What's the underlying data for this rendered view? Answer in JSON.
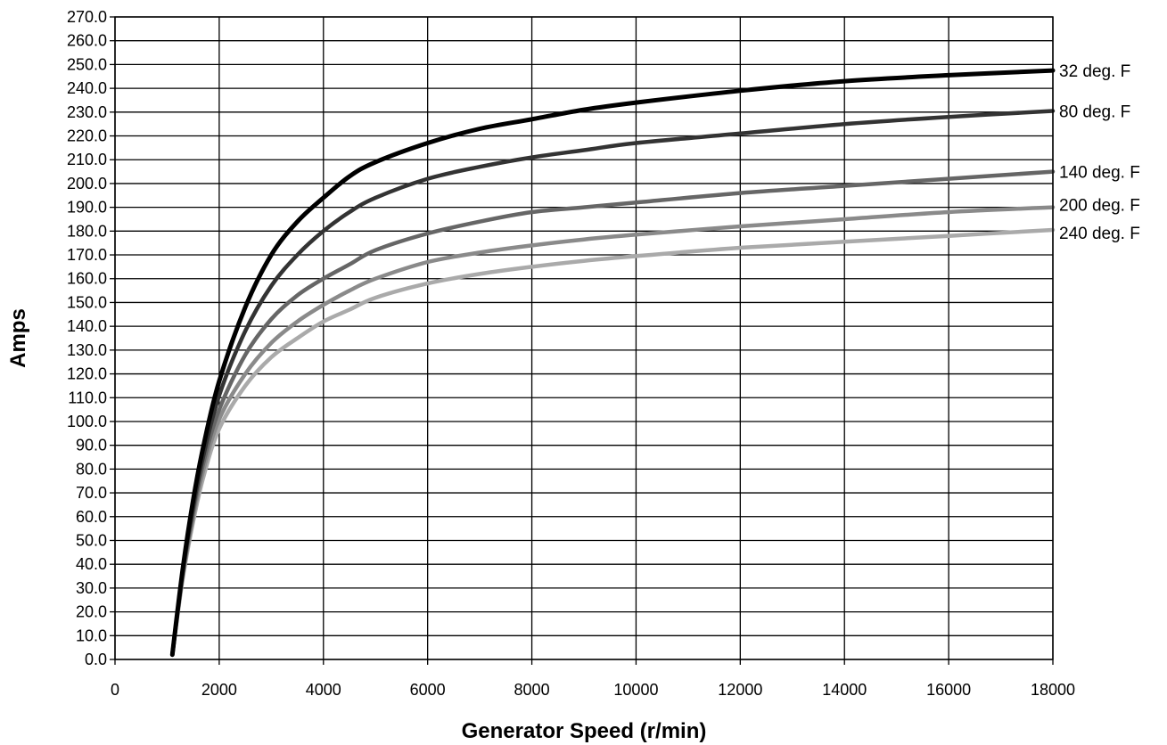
{
  "chart_data": {
    "type": "line",
    "title": "",
    "xlabel": "Generator Speed (r/min)",
    "ylabel": "Amps",
    "xlim": [
      0,
      18000
    ],
    "ylim": [
      0,
      270
    ],
    "grid": true,
    "x_ticks": [
      "0",
      "2000",
      "4000",
      "6000",
      "8000",
      "10000",
      "12000",
      "14000",
      "16000",
      "18000"
    ],
    "y_ticks": [
      "0.0",
      "10.0",
      "20.0",
      "30.0",
      "40.0",
      "50.0",
      "60.0",
      "70.0",
      "80.0",
      "90.0",
      "100.0",
      "110.0",
      "120.0",
      "130.0",
      "140.0",
      "150.0",
      "160.0",
      "170.0",
      "180.0",
      "190.0",
      "200.0",
      "210.0",
      "220.0",
      "230.0",
      "240.0",
      "250.0",
      "260.0",
      "270.0"
    ],
    "series": [
      {
        "name": "32 deg. F",
        "color": "#000000",
        "x": [
          1100,
          1300,
          1500,
          1700,
          2000,
          2500,
          3000,
          3500,
          4000,
          4500,
          5000,
          6000,
          7000,
          8000,
          9000,
          10000,
          12000,
          14000,
          16000,
          18000
        ],
        "y": [
          2,
          38,
          67,
          90,
          117,
          148,
          170,
          184,
          194,
          203,
          209,
          217,
          223,
          227,
          231,
          234,
          239,
          243,
          245.5,
          247.5
        ]
      },
      {
        "name": "80 deg. F",
        "color": "#333333",
        "x": [
          1100,
          1300,
          1500,
          1700,
          2000,
          2500,
          3000,
          3500,
          4000,
          4500,
          5000,
          6000,
          7000,
          8000,
          9000,
          10000,
          12000,
          14000,
          16000,
          18000
        ],
        "y": [
          2,
          37,
          64,
          86,
          111,
          138,
          157,
          170,
          180,
          188,
          194,
          202,
          207,
          211,
          214,
          217,
          221,
          225,
          228,
          230.5
        ]
      },
      {
        "name": "140 deg. F",
        "color": "#666666",
        "x": [
          1100,
          1300,
          1500,
          1700,
          2000,
          2500,
          3000,
          3500,
          4000,
          4500,
          5000,
          6000,
          7000,
          8000,
          9000,
          10000,
          12000,
          14000,
          16000,
          18000
        ],
        "y": [
          2,
          36,
          62,
          83,
          105,
          128,
          143,
          153,
          160,
          166,
          172,
          179,
          184,
          188,
          190,
          192,
          196,
          199,
          202,
          205
        ]
      },
      {
        "name": "200 deg. F",
        "color": "#8a8a8a",
        "x": [
          1100,
          1300,
          1500,
          1700,
          2000,
          2500,
          3000,
          3500,
          4000,
          4500,
          5000,
          6000,
          7000,
          8000,
          9000,
          10000,
          12000,
          14000,
          16000,
          18000
        ],
        "y": [
          2,
          35,
          60,
          80,
          101,
          120,
          133,
          142,
          149,
          155,
          160,
          167,
          171,
          174,
          176.5,
          178.5,
          182,
          185,
          188,
          190
        ]
      },
      {
        "name": "240 deg. F",
        "color": "#aaaaaa",
        "x": [
          1100,
          1300,
          1500,
          1700,
          2000,
          2500,
          3000,
          3500,
          4000,
          4500,
          5000,
          6000,
          7000,
          8000,
          9000,
          10000,
          12000,
          14000,
          16000,
          18000
        ],
        "y": [
          2,
          34,
          58,
          77,
          97,
          115,
          127,
          135,
          142,
          147,
          152,
          158,
          162,
          165,
          167.5,
          169.5,
          173,
          175.5,
          178,
          180.5
        ]
      }
    ]
  }
}
